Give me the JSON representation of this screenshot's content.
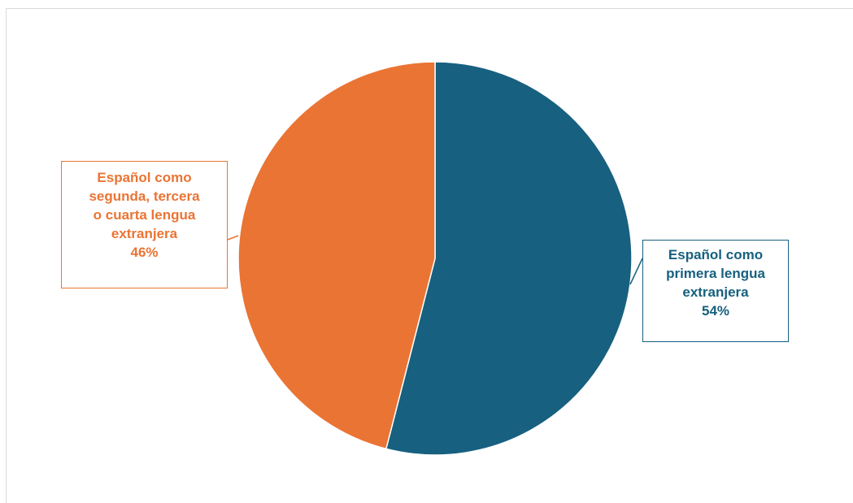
{
  "chart_data": {
    "type": "pie",
    "title": "",
    "slices": [
      {
        "label_lines": [
          "Español como",
          "primera lengua",
          "extranjera"
        ],
        "value": 54,
        "percent_label": "54%",
        "color": "#17607f"
      },
      {
        "label_lines": [
          "Español como",
          "segunda, tercera",
          "o cuarta lengua",
          "extranjera"
        ],
        "value": 46,
        "percent_label": "46%",
        "color": "#ea7434"
      }
    ],
    "start_angle_deg": 0,
    "direction": "clockwise",
    "legend": "none",
    "data_labels": "callouts"
  },
  "colors": {
    "background": "#ffffff",
    "frame_border": "#d9d9d9",
    "slice_separator": "#ffffff"
  }
}
